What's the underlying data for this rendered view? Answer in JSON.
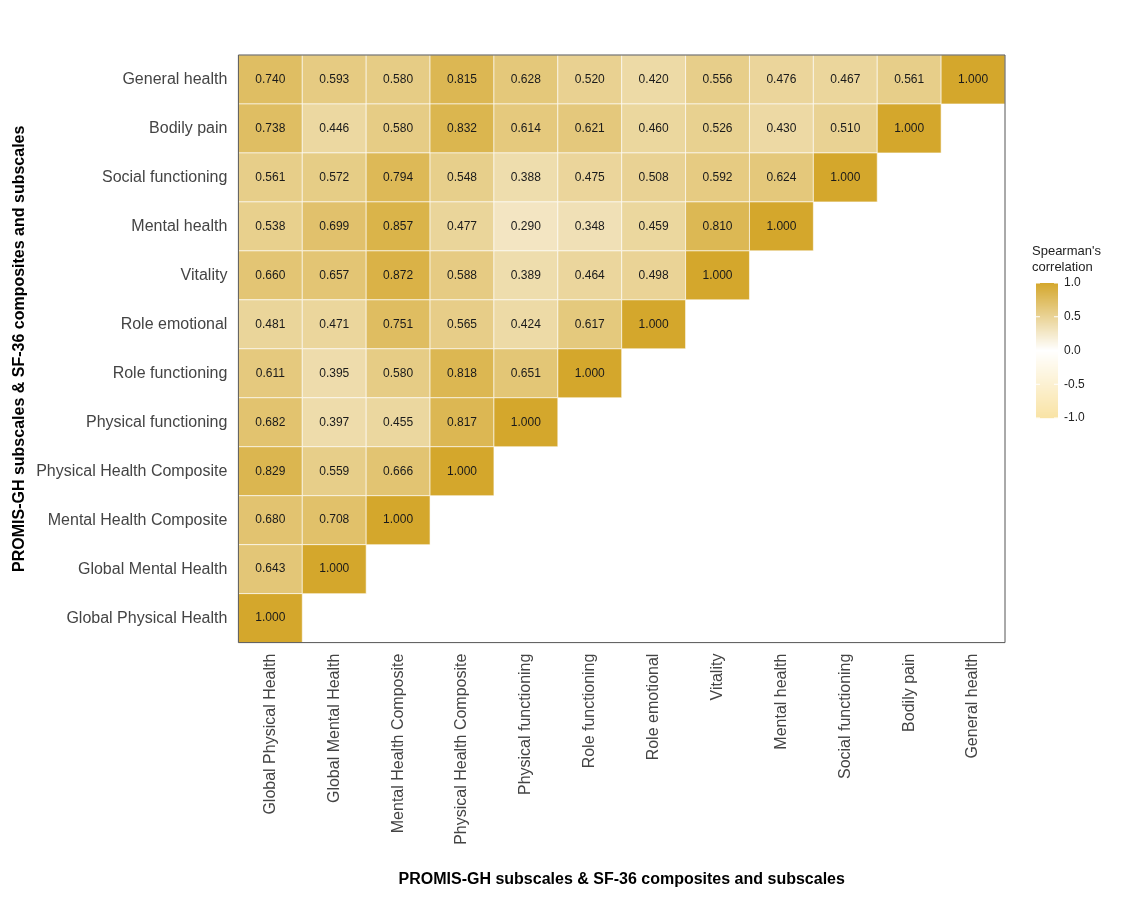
{
  "chart_data": {
    "type": "heatmap",
    "xlabel": "PROMIS-GH subscales & SF-36 composites and subscales",
    "ylabel": "PROMIS-GH subscales & SF-36 composites and subscales",
    "clabel": "Spearman's correlation",
    "categories": [
      "Global Physical Health",
      "Global Mental Health",
      "Mental Health Composite",
      "Physical Health Composite",
      "Physical functioning",
      "Role functioning",
      "Role emotional",
      "Vitality",
      "Mental health",
      "Social functioning",
      "Bodily pain",
      "General health"
    ],
    "y_categories": [
      "General health",
      "Bodily pain",
      "Social functioning",
      "Mental health",
      "Vitality",
      "Role emotional",
      "Role functioning",
      "Physical functioning",
      "Physical Health Composite",
      "Mental Health Composite",
      "Global Mental Health",
      "Global Physical Health"
    ],
    "cells": [
      [
        0.74,
        0.593,
        0.58,
        0.815,
        0.628,
        0.52,
        0.42,
        0.556,
        0.476,
        0.467,
        0.561,
        1.0
      ],
      [
        0.738,
        0.446,
        0.58,
        0.832,
        0.614,
        0.621,
        0.46,
        0.526,
        0.43,
        0.51,
        1.0,
        null
      ],
      [
        0.561,
        0.572,
        0.794,
        0.548,
        0.388,
        0.475,
        0.508,
        0.592,
        0.624,
        1.0,
        null,
        null
      ],
      [
        0.538,
        0.699,
        0.857,
        0.477,
        0.29,
        0.348,
        0.459,
        0.81,
        1.0,
        null,
        null,
        null
      ],
      [
        0.66,
        0.657,
        0.872,
        0.588,
        0.389,
        0.464,
        0.498,
        1.0,
        null,
        null,
        null,
        null
      ],
      [
        0.481,
        0.471,
        0.751,
        0.565,
        0.424,
        0.617,
        1.0,
        null,
        null,
        null,
        null,
        null
      ],
      [
        0.611,
        0.395,
        0.58,
        0.818,
        0.651,
        1.0,
        null,
        null,
        null,
        null,
        null,
        null
      ],
      [
        0.682,
        0.397,
        0.455,
        0.817,
        1.0,
        null,
        null,
        null,
        null,
        null,
        null,
        null
      ],
      [
        0.829,
        0.559,
        0.666,
        1.0,
        null,
        null,
        null,
        null,
        null,
        null,
        null,
        null
      ],
      [
        0.68,
        0.708,
        1.0,
        null,
        null,
        null,
        null,
        null,
        null,
        null,
        null,
        null
      ],
      [
        0.643,
        1.0,
        null,
        null,
        null,
        null,
        null,
        null,
        null,
        null,
        null,
        null
      ],
      [
        1.0,
        null,
        null,
        null,
        null,
        null,
        null,
        null,
        null,
        null,
        null,
        null
      ]
    ],
    "cell_labels": [
      [
        "0.740",
        "0.593",
        "0.580",
        "0.815",
        "0.628",
        "0.520",
        "0.420",
        "0.556",
        "0.476",
        "0.467",
        "0.561",
        "1.000"
      ],
      [
        "0.738",
        "0.446",
        "0.580",
        "0.832",
        "0.614",
        "0.621",
        "0.460",
        "0.526",
        "0.430",
        "0.510",
        "1.000",
        null
      ],
      [
        "0.561",
        "0.572",
        "0.794",
        "0.548",
        "0.388",
        "0.475",
        "0.508",
        "0.592",
        "0.624",
        "1.000",
        null,
        null
      ],
      [
        "0.538",
        "0.699",
        "0.857",
        "0.477",
        "0.290",
        "0.348",
        "0.459",
        "0.810",
        "1.000",
        null,
        null,
        null
      ],
      [
        "0.660",
        "0.657",
        "0.872",
        "0.588",
        "0.389",
        "0.464",
        "0.498",
        "1.000",
        null,
        null,
        null,
        null
      ],
      [
        "0.481",
        "0.471",
        "0.751",
        "0.565",
        "0.424",
        "0.617",
        "1.000",
        null,
        null,
        null,
        null,
        null
      ],
      [
        "0.611",
        "0.395",
        "0.580",
        "0.818",
        "0.651",
        "1.000",
        null,
        null,
        null,
        null,
        null,
        null
      ],
      [
        "0.682",
        "0.397",
        "0.455",
        "0.817",
        "1.000",
        null,
        null,
        null,
        null,
        null,
        null,
        null
      ],
      [
        "0.829",
        "0.559",
        "0.666",
        "1.000",
        null,
        null,
        null,
        null,
        null,
        null,
        null,
        null
      ],
      [
        "0.680",
        "0.708",
        "1.000",
        null,
        null,
        null,
        null,
        null,
        null,
        null,
        null,
        null
      ],
      [
        "0.643",
        "1.000",
        null,
        null,
        null,
        null,
        null,
        null,
        null,
        null,
        null,
        null
      ],
      [
        "1.000",
        null,
        null,
        null,
        null,
        null,
        null,
        null,
        null,
        null,
        null,
        null
      ]
    ],
    "clim": [
      -1,
      1
    ],
    "cticks": [
      {
        "value": 1,
        "label": "1.0"
      },
      {
        "value": 0.5,
        "label": "0.5"
      },
      {
        "value": 0,
        "label": "0.0"
      },
      {
        "value": -0.5,
        "label": "-0.5"
      },
      {
        "value": -1,
        "label": "-1.0"
      }
    ]
  }
}
